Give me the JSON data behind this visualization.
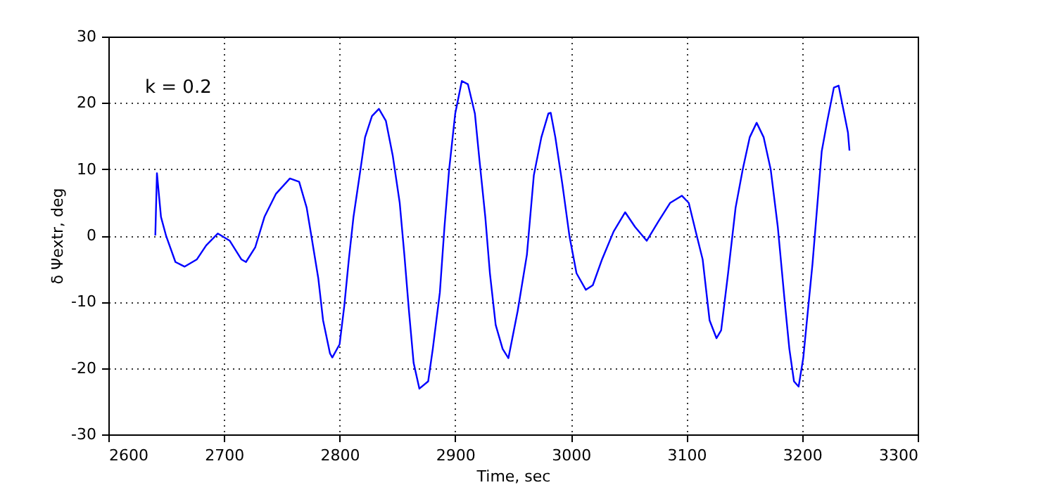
{
  "chart_data": {
    "type": "line",
    "xlabel": "Time, sec",
    "ylabel": "δ Ψextr, deg",
    "annotations": [
      "k = 0.2"
    ],
    "xlim": [
      2600,
      3300
    ],
    "xticks": [
      2600,
      2700,
      2800,
      2900,
      3000,
      3100,
      3200,
      3300
    ],
    "ylim": [
      -30,
      30
    ],
    "yticks": [
      -30,
      -20,
      -10,
      0,
      10,
      20,
      30
    ],
    "grid": true,
    "line_style": "solid",
    "marker": "none",
    "series": [
      {
        "color": "#0000ff",
        "x": [
          2640.6,
          2642,
          2645.5,
          2650,
          2658,
          2666,
          2676.6,
          2684.6,
          2694.7,
          2705,
          2715,
          2719,
          2727,
          2735,
          2745,
          2757,
          2765,
          2771.5,
          2775.6,
          2781.6,
          2785.7,
          2791.7,
          2793.7,
          2800,
          2804,
          2808,
          2812,
          2818,
          2822,
          2828,
          2834,
          2840,
          2846,
          2852,
          2856,
          2860,
          2864,
          2869,
          2876.6,
          2880.6,
          2886.7,
          2890.7,
          2894.7,
          2900,
          2905.7,
          2911,
          2917,
          2921,
          2926,
          2930,
          2935,
          2941,
          2946,
          2954,
          2962,
          2968,
          2974.5,
          2980.6,
          2982.6,
          2986.6,
          2992.7,
          2998.8,
          3004.9,
          3013,
          3019,
          3027,
          3037,
          3047,
          3055.5,
          3065.6,
          3075.7,
          3085.8,
          3096,
          3102,
          3108,
          3114,
          3120,
          3126,
          3130,
          3136,
          3142.5,
          3148.6,
          3154.7,
          3160.7,
          3166.8,
          3172.9,
          3179,
          3185,
          3189,
          3193,
          3197,
          3201,
          3205,
          3209,
          3213,
          3217,
          3221.5,
          3227.5,
          3231.6,
          3235.6,
          3239.7,
          3241
        ],
        "values": [
          0,
          9.4,
          2.8,
          -0.1,
          -4,
          -4.7,
          -3.6,
          -1.5,
          0.3,
          -0.8,
          -3.6,
          -4,
          -1.8,
          2.8,
          6.3,
          8.6,
          8.1,
          4.2,
          -0.1,
          -6.5,
          -12.8,
          -17.8,
          -18.4,
          -16.4,
          -10.7,
          -3.6,
          2.8,
          9.9,
          14.8,
          18,
          19.1,
          17.3,
          12,
          4.9,
          -2.9,
          -11.4,
          -19.2,
          -23.1,
          -22,
          -17.1,
          -8.6,
          1.3,
          9.9,
          18.4,
          23.3,
          22.8,
          18.4,
          11.3,
          2.8,
          -5.7,
          -13.5,
          -17.1,
          -18.5,
          -11.4,
          -2.9,
          9.1,
          14.8,
          18.4,
          18.5,
          14.8,
          7.7,
          -0.1,
          -5.7,
          -8.2,
          -7.5,
          -3.6,
          0.6,
          3.5,
          1.3,
          -0.8,
          2.1,
          4.9,
          6,
          4.9,
          0.6,
          -3.6,
          -12.8,
          -15.5,
          -14.3,
          -5.7,
          4.2,
          9.9,
          14.8,
          17,
          14.8,
          9.9,
          1.3,
          -10,
          -17.1,
          -22,
          -22.8,
          -18.5,
          -11.4,
          -4.3,
          4.2,
          12.7,
          17,
          22.3,
          22.6,
          19.1,
          15.5,
          12.8
        ]
      }
    ]
  }
}
